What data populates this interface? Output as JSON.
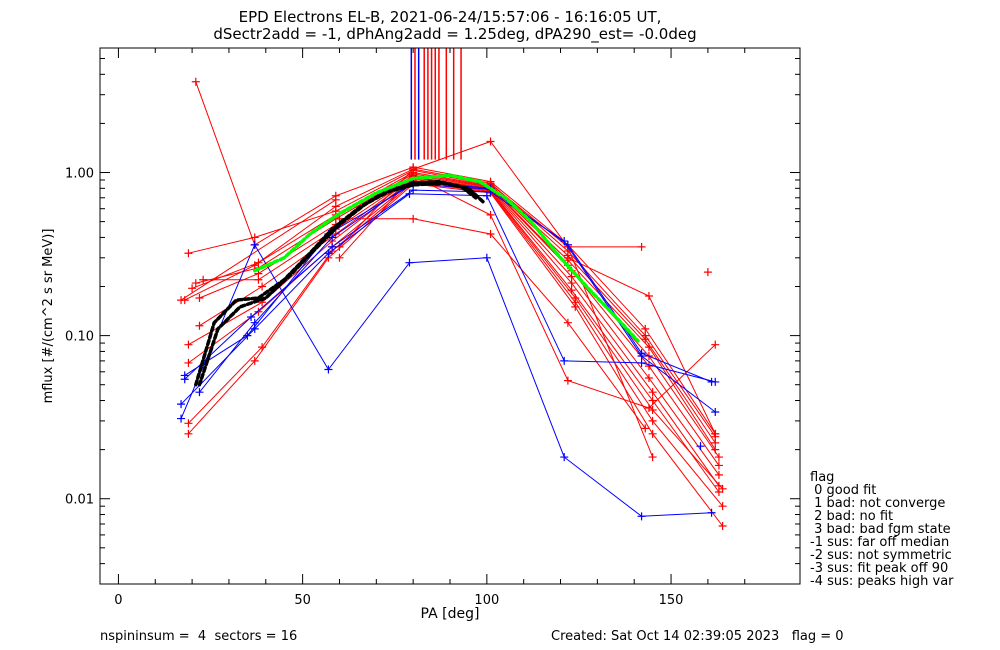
{
  "chart_data": {
    "type": "line",
    "title": "EPD Electrons EL-B, 2021-06-24/15:57:06 - 16:16:05 UT,",
    "subtitle": "dSectr2add = -1, dPhAng2add = 1.25deg, dPA290_est=  -0.0deg",
    "xlabel": "PA [deg]",
    "ylabel": "mflux [#/(cm^2 s sr MeV)]",
    "xlim": [
      -5,
      185
    ],
    "ylim": [
      0.003,
      5.8
    ],
    "yscale": "log",
    "x_ticks": [
      0,
      50,
      100,
      150
    ],
    "x_tick_labels": [
      "0",
      "50",
      "100",
      "150"
    ],
    "y_ticks": [
      0.01,
      0.1,
      1.0
    ],
    "y_tick_labels": [
      "0.01",
      "0.10",
      "1.00"
    ],
    "grid": false,
    "colors": {
      "red": "#ff0000",
      "blue": "#0000ff",
      "black": "#000000",
      "green": "#00ff00"
    },
    "series": [
      {
        "color": "red",
        "x": [
          21,
          37,
          59,
          80,
          101,
          122,
          143,
          162
        ],
        "y": [
          3.6,
          0.36,
          0.72,
          1.08,
          0.88,
          0.36,
          0.11,
          0.025
        ]
      },
      {
        "color": "red",
        "x": [
          18,
          37,
          59,
          80,
          101,
          122,
          143,
          162
        ],
        "y": [
          0.165,
          0.27,
          0.62,
          1.05,
          0.86,
          0.33,
          0.1,
          0.024
        ]
      },
      {
        "color": "red",
        "x": [
          19,
          37,
          59,
          80,
          101,
          122,
          143,
          162
        ],
        "y": [
          0.32,
          0.4,
          0.58,
          1.03,
          0.84,
          0.31,
          0.095,
          0.022
        ]
      },
      {
        "color": "red",
        "x": [
          20,
          38,
          59,
          80,
          101,
          122,
          144,
          162
        ],
        "y": [
          0.195,
          0.28,
          0.55,
          1.0,
          0.83,
          0.29,
          0.085,
          0.02
        ]
      },
      {
        "color": "red",
        "x": [
          21,
          38,
          59,
          80,
          101,
          122,
          144,
          163
        ],
        "y": [
          0.21,
          0.26,
          0.52,
          0.98,
          0.82,
          0.27,
          0.075,
          0.018
        ]
      },
      {
        "color": "red",
        "x": [
          22,
          38,
          59,
          80,
          101,
          123,
          144,
          163
        ],
        "y": [
          0.17,
          0.24,
          0.48,
          0.96,
          0.81,
          0.25,
          0.065,
          0.016
        ]
      },
      {
        "color": "red",
        "x": [
          23,
          38,
          59,
          80,
          101,
          123,
          144,
          163
        ],
        "y": [
          0.22,
          0.22,
          0.45,
          0.94,
          0.8,
          0.23,
          0.055,
          0.014
        ]
      },
      {
        "color": "red",
        "x": [
          22,
          39,
          59,
          80,
          101,
          123,
          145,
          163
        ],
        "y": [
          0.115,
          0.2,
          0.42,
          0.93,
          0.79,
          0.21,
          0.045,
          0.012
        ]
      },
      {
        "color": "red",
        "x": [
          19,
          39,
          58,
          80,
          101,
          123,
          145,
          163
        ],
        "y": [
          0.088,
          0.16,
          0.38,
          0.91,
          0.78,
          0.19,
          0.04,
          0.011
        ]
      },
      {
        "color": "red",
        "x": [
          19,
          38,
          58,
          80,
          101,
          124,
          145,
          164
        ],
        "y": [
          0.068,
          0.14,
          0.35,
          0.89,
          0.77,
          0.17,
          0.035,
          0.0115
        ]
      },
      {
        "color": "red",
        "x": [
          19,
          39,
          58,
          80,
          101,
          124,
          145,
          164
        ],
        "y": [
          0.029,
          0.085,
          0.33,
          0.87,
          0.76,
          0.16,
          0.03,
          0.009
        ]
      },
      {
        "color": "red",
        "x": [
          19,
          37,
          57,
          80,
          101,
          124,
          145,
          164
        ],
        "y": [
          0.025,
          0.07,
          0.3,
          0.85,
          0.75,
          0.15,
          0.025,
          0.0068
        ]
      },
      {
        "color": "red",
        "x": [
          60,
          80,
          101,
          122,
          143
        ],
        "y": [
          0.52,
          0.52,
          0.42,
          0.12,
          0.027
        ]
      },
      {
        "color": "red",
        "x": [
          60,
          80,
          101,
          122,
          145
        ],
        "y": [
          0.35,
          1.05,
          1.55,
          0.35,
          0.018
        ]
      },
      {
        "color": "red",
        "x": [
          60,
          80,
          101,
          122,
          144,
          162
        ],
        "y": [
          0.3,
          0.95,
          0.55,
          0.053,
          0.036,
          0.088
        ]
      },
      {
        "color": "red",
        "x": [
          101,
          122,
          142
        ],
        "y": [
          0.85,
          0.35,
          0.35
        ]
      },
      {
        "color": "red",
        "x": [
          122,
          144,
          162
        ],
        "y": [
          0.3,
          0.175,
          0.025
        ]
      },
      {
        "color": "red",
        "x": [
          17,
          59
        ],
        "y": [
          0.165,
          0.68
        ]
      },
      {
        "color": "blue",
        "x": [
          17,
          37,
          57,
          79,
          100,
          121,
          142,
          161
        ],
        "y": [
          0.031,
          0.36,
          0.062,
          0.28,
          0.3,
          0.018,
          0.0078,
          0.0082
        ]
      },
      {
        "color": "blue",
        "x": [
          17,
          37,
          57,
          79,
          100,
          121,
          142,
          162
        ],
        "y": [
          0.038,
          0.11,
          0.32,
          0.74,
          0.72,
          0.07,
          0.068,
          0.052
        ]
      },
      {
        "color": "blue",
        "x": [
          18,
          36,
          58,
          80,
          101,
          121,
          142,
          162
        ],
        "y": [
          0.054,
          0.13,
          0.35,
          0.78,
          0.76,
          0.38,
          0.075,
          0.034
        ]
      },
      {
        "color": "blue",
        "x": [
          18,
          35,
          57,
          80,
          101,
          122,
          142,
          161
        ],
        "y": [
          0.057,
          0.1,
          0.42,
          0.85,
          0.79,
          0.36,
          0.078,
          0.052
        ]
      },
      {
        "color": "blue",
        "x": [
          22,
          37,
          58,
          80,
          101
        ],
        "y": [
          0.045,
          0.12,
          0.4,
          0.88,
          0.8
        ]
      },
      {
        "color": "black",
        "dashed": true,
        "x": [
          21,
          26,
          32,
          38,
          45,
          52,
          58,
          65,
          72,
          80,
          88,
          95,
          99
        ],
        "y": [
          0.05,
          0.12,
          0.165,
          0.17,
          0.22,
          0.32,
          0.45,
          0.6,
          0.75,
          0.84,
          0.86,
          0.8,
          0.66
        ]
      },
      {
        "color": "black",
        "dashed": true,
        "x": [
          22,
          27,
          33,
          40,
          47,
          54,
          60,
          67,
          74,
          80,
          87,
          93,
          97
        ],
        "y": [
          0.05,
          0.11,
          0.15,
          0.17,
          0.24,
          0.35,
          0.48,
          0.64,
          0.78,
          0.86,
          0.88,
          0.82,
          0.7
        ]
      },
      {
        "color": "green",
        "dashed": true,
        "x": [
          37,
          45,
          52,
          60,
          70,
          80,
          90,
          98,
          105,
          112,
          120,
          128,
          135,
          141
        ],
        "y": [
          0.25,
          0.3,
          0.42,
          0.56,
          0.75,
          0.92,
          0.96,
          0.88,
          0.7,
          0.5,
          0.3,
          0.19,
          0.13,
          0.093
        ]
      }
    ],
    "flag_lines": [
      {
        "x": 79.5,
        "color": "blue"
      },
      {
        "x": 80.5,
        "color": "red"
      },
      {
        "x": 81.5,
        "color": "blue"
      },
      {
        "x": 83.0,
        "color": "red"
      },
      {
        "x": 84.0,
        "color": "red"
      },
      {
        "x": 85.0,
        "color": "red"
      },
      {
        "x": 86.0,
        "color": "red"
      },
      {
        "x": 87.0,
        "color": "red"
      },
      {
        "x": 89.0,
        "color": "red"
      },
      {
        "x": 91.0,
        "color": "red"
      },
      {
        "x": 93.0,
        "color": "red"
      }
    ],
    "outliers": [
      {
        "x": 160,
        "y": 0.245,
        "color": "red"
      },
      {
        "x": 158,
        "y": 0.021,
        "color": "blue"
      }
    ]
  },
  "legend": {
    "title": "flag",
    "items": [
      " 0 good fit",
      " 1 bad: not converge",
      " 2 bad: no fit",
      " 3 bad: bad fgm state",
      "-1 sus: far off median",
      "-2 sus: not symmetric",
      "-3 sus: fit peak off 90",
      "-4 sus: peaks high var"
    ]
  },
  "footer": {
    "left": "nspininsum =  4  sectors = 16",
    "right": "Created: Sat Oct 14 02:39:05 2023   flag = 0"
  }
}
